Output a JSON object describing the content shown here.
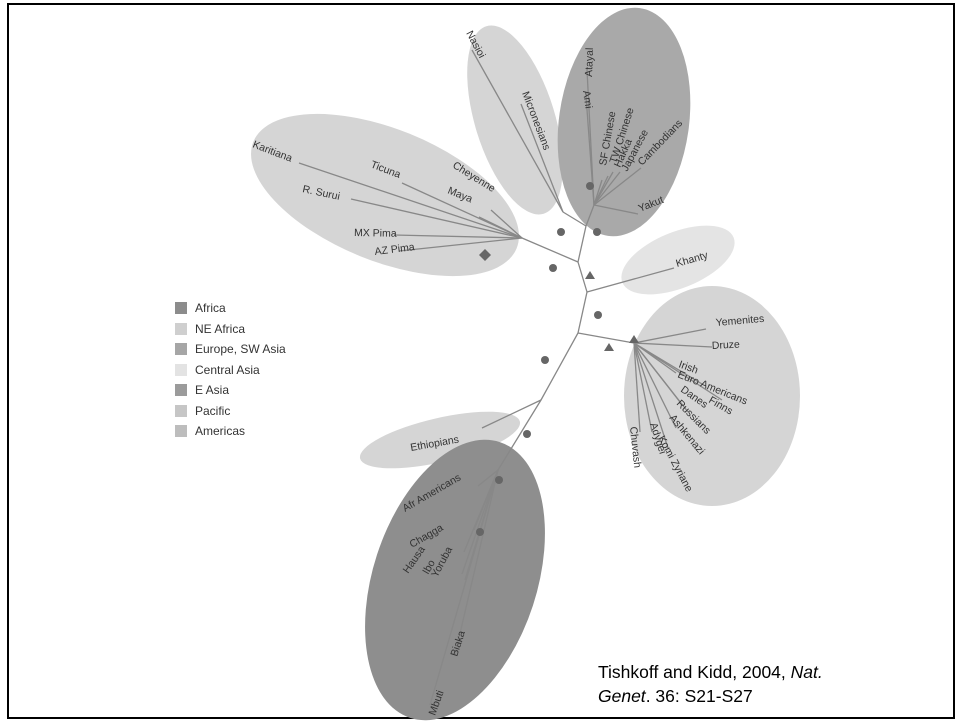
{
  "legend": [
    {
      "label": "Africa",
      "color": "#8c8c8c"
    },
    {
      "label": "NE Africa",
      "color": "#cfcfcf"
    },
    {
      "label": "Europe, SW Asia",
      "color": "#a6a6a6"
    },
    {
      "label": "Central Asia",
      "color": "#e3e3e3"
    },
    {
      "label": "E Asia",
      "color": "#9b9b9b"
    },
    {
      "label": "Pacific",
      "color": "#c6c6c6"
    },
    {
      "label": "Americas",
      "color": "#bdbdbd"
    }
  ],
  "populations": {
    "americas": [
      "Karitiana",
      "Ticuna",
      "R. Surui",
      "Cheyenne",
      "Maya",
      "MX Pima",
      "AZ Pima"
    ],
    "pacific": [
      "Nasioi",
      "Micronesians"
    ],
    "east_asia": [
      "Atayal",
      "Ami",
      "SF Chinese",
      "TW Chinese",
      "Hakka",
      "Japanese",
      "Cambodians",
      "Yakut"
    ],
    "central_asia": [
      "Khanty"
    ],
    "europe_sw_asia": [
      "Yemenites",
      "Druze",
      "Irish",
      "Euro Americans",
      "Finns",
      "Danes",
      "Russians",
      "Ashkenazi",
      "Komi Zyriane",
      "Adygei",
      "Chuvash"
    ],
    "ne_africa": [
      "Ethiopians"
    ],
    "africa": [
      "Afr Americans",
      "Chagga",
      "Hausa",
      "Ibo",
      "Yoruba",
      "Biaka",
      "Mbuti"
    ]
  },
  "citation": {
    "text_before": "Tishkoff and Kidd, 2004, ",
    "journal_line1": "Nat.",
    "journal_line2": "Genet",
    "text_after": ". 36: S21-S27"
  }
}
